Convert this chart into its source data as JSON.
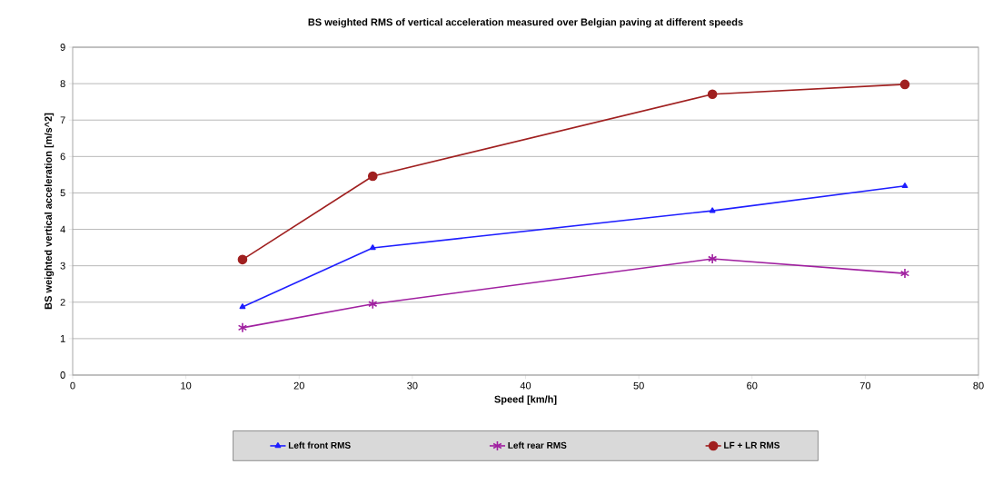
{
  "chart_data": {
    "type": "line",
    "title": "BS weighted RMS of vertical acceleration measured over Belgian paving at different speeds",
    "xlabel": "Speed [km/h]",
    "ylabel": "BS weighted vertical acceleration [m/s^2]",
    "x": [
      15,
      26.5,
      56.5,
      73.5
    ],
    "series": [
      {
        "name": "Left front RMS",
        "color": "#1f1fff",
        "marker": "triangle",
        "values": [
          1.87,
          3.49,
          4.51,
          5.19
        ]
      },
      {
        "name": "Left rear RMS",
        "color": "#a020a0",
        "marker": "cross",
        "values": [
          1.3,
          1.95,
          3.19,
          2.79
        ]
      },
      {
        "name": "LF + LR RMS",
        "color": "#a02020",
        "marker": "circle",
        "values": [
          3.17,
          5.46,
          7.71,
          7.98
        ]
      }
    ],
    "xlim": [
      0,
      80
    ],
    "xticks": [
      0,
      10,
      20,
      30,
      40,
      50,
      60,
      70,
      80
    ],
    "ylim": [
      0,
      9
    ],
    "yticks": [
      0,
      1,
      2,
      3,
      4,
      5,
      6,
      7,
      8,
      9
    ],
    "grid": "y",
    "legend": "bottom"
  }
}
